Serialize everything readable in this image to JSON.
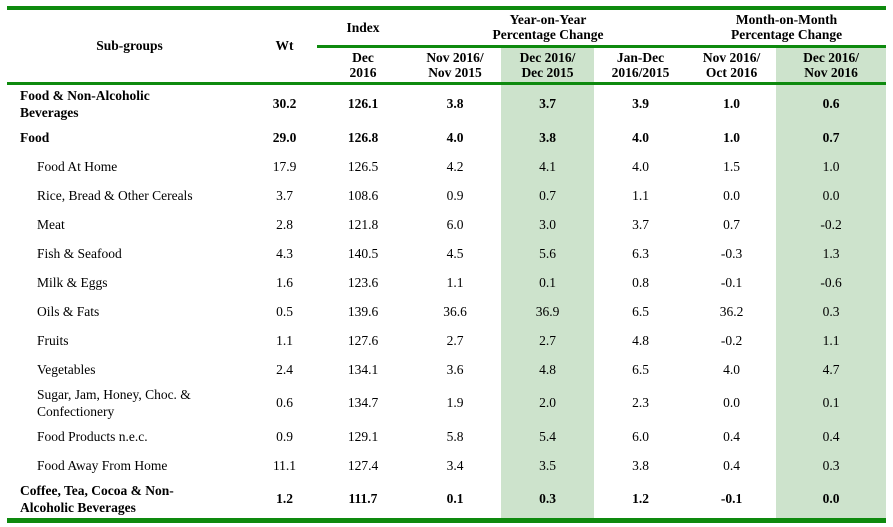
{
  "table": {
    "colors": {
      "rule_green": "#0e8a0e",
      "highlight_green": "#cde3cc"
    },
    "headers": {
      "subgroups": "Sub-groups",
      "wt": "Wt",
      "index_group": "Index",
      "yoy_group": "Year-on-Year\nPercentage Change",
      "mom_group": "Month-on-Month\nPercentage Change",
      "index_period": "Dec\n2016",
      "yoy_nov": "Nov 2016/\nNov 2015",
      "yoy_dec": "Dec 2016/\nDec 2015",
      "yoy_jandec": "Jan-Dec\n2016/2015",
      "mom_nov": "Nov 2016/\nOct 2016",
      "mom_dec": "Dec 2016/\nNov 2016"
    },
    "rows": [
      {
        "label": "Food & Non-Alcoholic\nBeverages",
        "bold": true,
        "indent": false,
        "twoline": true,
        "values": [
          "30.2",
          "126.1",
          "3.8",
          "3.7",
          "3.9",
          "1.0",
          "0.6"
        ]
      },
      {
        "label": "Food",
        "bold": true,
        "indent": false,
        "twoline": false,
        "values": [
          "29.0",
          "126.8",
          "4.0",
          "3.8",
          "4.0",
          "1.0",
          "0.7"
        ]
      },
      {
        "label": "Food At Home",
        "bold": false,
        "indent": true,
        "twoline": false,
        "values": [
          "17.9",
          "126.5",
          "4.2",
          "4.1",
          "4.0",
          "1.5",
          "1.0"
        ]
      },
      {
        "label": "Rice, Bread & Other Cereals",
        "bold": false,
        "indent": true,
        "twoline": false,
        "values": [
          "3.7",
          "108.6",
          "0.9",
          "0.7",
          "1.1",
          "0.0",
          "0.0"
        ]
      },
      {
        "label": "Meat",
        "bold": false,
        "indent": true,
        "twoline": false,
        "values": [
          "2.8",
          "121.8",
          "6.0",
          "3.0",
          "3.7",
          "0.7",
          "-0.2"
        ]
      },
      {
        "label": "Fish & Seafood",
        "bold": false,
        "indent": true,
        "twoline": false,
        "values": [
          "4.3",
          "140.5",
          "4.5",
          "5.6",
          "6.3",
          "-0.3",
          "1.3"
        ]
      },
      {
        "label": "Milk & Eggs",
        "bold": false,
        "indent": true,
        "twoline": false,
        "values": [
          "1.6",
          "123.6",
          "1.1",
          "0.1",
          "0.8",
          "-0.1",
          "-0.6"
        ]
      },
      {
        "label": "Oils & Fats",
        "bold": false,
        "indent": true,
        "twoline": false,
        "values": [
          "0.5",
          "139.6",
          "36.6",
          "36.9",
          "6.5",
          "36.2",
          "0.3"
        ]
      },
      {
        "label": "Fruits",
        "bold": false,
        "indent": true,
        "twoline": false,
        "values": [
          "1.1",
          "127.6",
          "2.7",
          "2.7",
          "4.8",
          "-0.2",
          "1.1"
        ]
      },
      {
        "label": "Vegetables",
        "bold": false,
        "indent": true,
        "twoline": false,
        "values": [
          "2.4",
          "134.1",
          "3.6",
          "4.8",
          "6.5",
          "4.0",
          "4.7"
        ]
      },
      {
        "label": "Sugar, Jam, Honey, Choc. &\nConfectionery",
        "bold": false,
        "indent": true,
        "twoline": true,
        "values": [
          "0.6",
          "134.7",
          "1.9",
          "2.0",
          "2.3",
          "0.0",
          "0.1"
        ]
      },
      {
        "label": "Food Products n.e.c.",
        "bold": false,
        "indent": true,
        "twoline": false,
        "values": [
          "0.9",
          "129.1",
          "5.8",
          "5.4",
          "6.0",
          "0.4",
          "0.4"
        ]
      },
      {
        "label": "Food Away From Home",
        "bold": false,
        "indent": true,
        "twoline": false,
        "values": [
          "11.1",
          "127.4",
          "3.4",
          "3.5",
          "3.8",
          "0.4",
          "0.3"
        ]
      },
      {
        "label": "Coffee, Tea, Cocoa & Non-\nAlcoholic Beverages",
        "bold": true,
        "indent": false,
        "twoline": true,
        "values": [
          "1.2",
          "111.7",
          "0.1",
          "0.3",
          "1.2",
          "-0.1",
          "0.0"
        ]
      }
    ]
  }
}
